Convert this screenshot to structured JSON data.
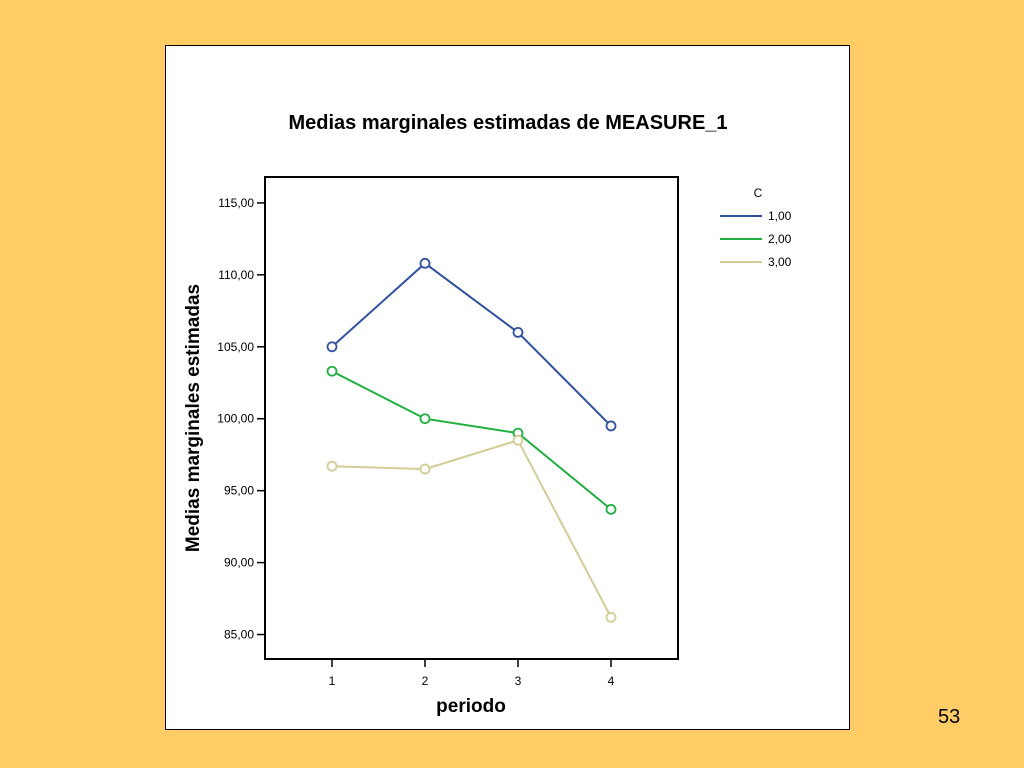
{
  "page_number": "53",
  "chart_data": {
    "type": "line",
    "title": "Medias marginales estimadas de MEASURE_1",
    "xlabel": "periodo",
    "ylabel": "Medias marginales estimadas",
    "categories": [
      "1",
      "2",
      "3",
      "4"
    ],
    "ylim": [
      83.3,
      116.8
    ],
    "yticks": [
      85,
      90,
      95,
      100,
      105,
      110,
      115
    ],
    "ytick_labels": [
      "85,00",
      "90,00",
      "95,00",
      "100,00",
      "105,00",
      "110,00",
      "115,00"
    ],
    "legend_title": "C",
    "legend_position": "right",
    "grid": false,
    "marker": "open-circle",
    "series": [
      {
        "name": "1,00",
        "color": "#3050a0",
        "values": [
          105.0,
          110.8,
          106.0,
          99.5
        ]
      },
      {
        "name": "2,00",
        "color": "#20b040",
        "values": [
          103.3,
          100.0,
          99.0,
          93.7
        ]
      },
      {
        "name": "3,00",
        "color": "#d4cc96",
        "values": [
          96.7,
          96.5,
          98.5,
          86.2
        ]
      }
    ]
  }
}
